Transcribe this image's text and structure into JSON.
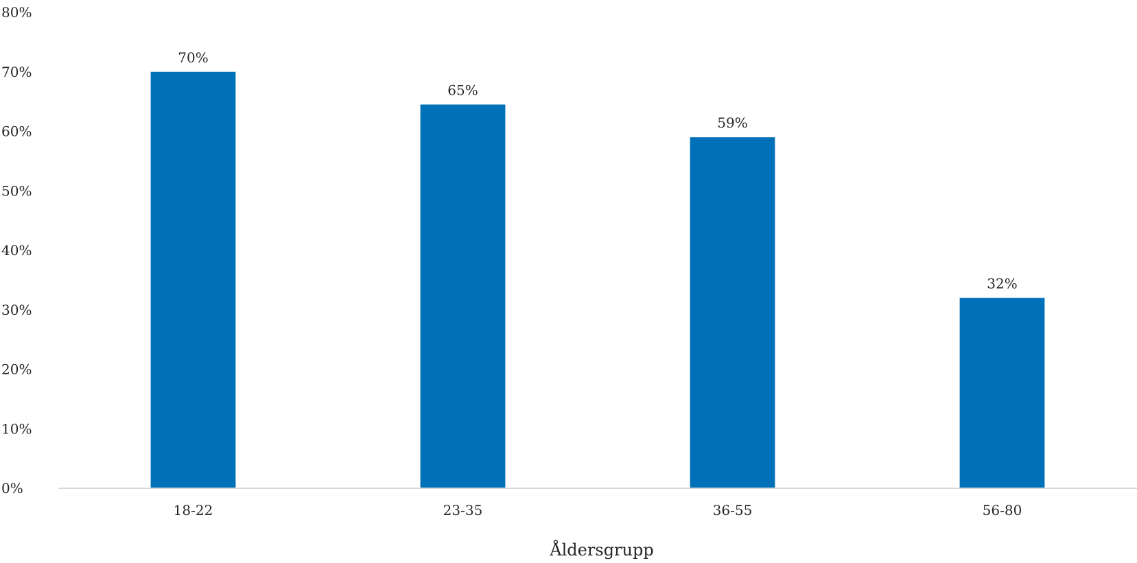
{
  "chart_data": {
    "type": "bar",
    "categories": [
      "18-22",
      "23-35",
      "36-55",
      "56-80"
    ],
    "values": [
      70,
      64.5,
      59,
      32
    ],
    "data_labels": [
      "70%",
      "65%",
      "59%",
      "32%"
    ],
    "title": "",
    "xlabel": "Åldersgrupp",
    "ylabel": "",
    "ylim": [
      0,
      80
    ],
    "yticks": [
      0,
      10,
      20,
      30,
      40,
      50,
      60,
      70,
      80
    ],
    "ytick_labels": [
      "0%",
      "10%",
      "20%",
      "30%",
      "40%",
      "50%",
      "60%",
      "70%",
      "80%"
    ],
    "grid": false,
    "legend": "none",
    "bar_color": "#0070B8",
    "axis_color": "#D9D9D9"
  }
}
